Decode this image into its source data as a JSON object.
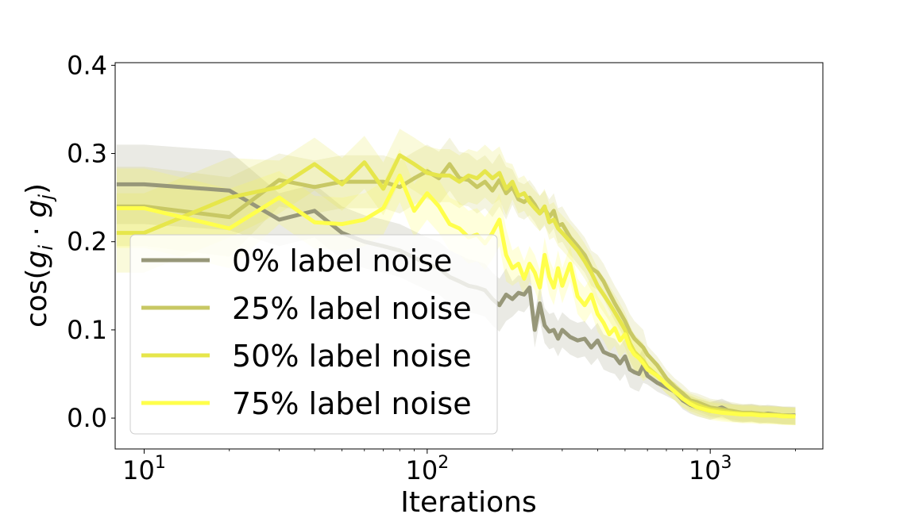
{
  "chart_data": {
    "type": "line",
    "xlabel": "Iterations",
    "ylabel_parts": [
      "cos(",
      "g",
      "i",
      " · ",
      "g",
      "j",
      ")"
    ],
    "x_scale": "log",
    "xlim": [
      7.9,
      2500
    ],
    "ylim": [
      -0.035,
      0.403
    ],
    "y_ticks": [
      {
        "value": 0.0,
        "label": "0.0"
      },
      {
        "value": 0.1,
        "label": "0.1"
      },
      {
        "value": 0.2,
        "label": "0.2"
      },
      {
        "value": 0.3,
        "label": "0.3"
      },
      {
        "value": 0.4,
        "label": "0.4"
      }
    ],
    "x_ticks": [
      {
        "value": 10,
        "base": "10",
        "exp": "1"
      },
      {
        "value": 100,
        "base": "10",
        "exp": "2"
      },
      {
        "value": 1000,
        "base": "10",
        "exp": "3"
      }
    ],
    "grid": false,
    "legend_position": "lower-left",
    "x": [
      8,
      10,
      20,
      30,
      40,
      50,
      60,
      70,
      80,
      90,
      100,
      110,
      120,
      130,
      140,
      150,
      160,
      170,
      180,
      190,
      200,
      210,
      220,
      230,
      240,
      250,
      260,
      270,
      280,
      290,
      300,
      320,
      340,
      360,
      380,
      400,
      420,
      440,
      460,
      480,
      500,
      520,
      540,
      560,
      580,
      600,
      650,
      700,
      750,
      800,
      850,
      900,
      950,
      1000,
      1100,
      1200,
      1300,
      1400,
      1500,
      1600,
      1700,
      1800,
      1900,
      2000
    ],
    "series": [
      {
        "name": "0% label noise",
        "color": "#979779",
        "values": [
          0.265,
          0.265,
          0.258,
          0.225,
          0.235,
          0.21,
          0.2,
          0.195,
          0.19,
          0.182,
          0.175,
          0.17,
          0.16,
          0.155,
          0.15,
          0.148,
          0.145,
          0.135,
          0.128,
          0.14,
          0.135,
          0.142,
          0.14,
          0.148,
          0.1,
          0.13,
          0.105,
          0.098,
          0.1,
          0.09,
          0.1,
          0.092,
          0.088,
          0.09,
          0.08,
          0.088,
          0.075,
          0.072,
          0.07,
          0.062,
          0.07,
          0.055,
          0.052,
          0.05,
          0.06,
          0.048,
          0.04,
          0.035,
          0.03,
          0.02,
          0.015,
          0.012,
          0.01,
          0.008,
          0.012,
          0.006,
          0.005,
          0.006,
          0.004,
          0.005,
          0.004,
          0.003,
          0.003,
          0.003
        ]
      },
      {
        "name": "25% label noise",
        "color": "#c8c864",
        "values": [
          0.24,
          0.24,
          0.228,
          0.27,
          0.262,
          0.268,
          0.268,
          0.268,
          0.262,
          0.272,
          0.28,
          0.272,
          0.288,
          0.272,
          0.27,
          0.262,
          0.268,
          0.258,
          0.27,
          0.255,
          0.262,
          0.248,
          0.245,
          0.25,
          0.242,
          0.232,
          0.238,
          0.228,
          0.235,
          0.218,
          0.22,
          0.205,
          0.195,
          0.185,
          0.17,
          0.165,
          0.155,
          0.142,
          0.13,
          0.12,
          0.11,
          0.098,
          0.09,
          0.085,
          0.08,
          0.072,
          0.06,
          0.045,
          0.035,
          0.028,
          0.02,
          0.018,
          0.015,
          0.012,
          0.01,
          0.008,
          0.006,
          0.006,
          0.005,
          0.004,
          0.004,
          0.003,
          0.003,
          0.002
        ]
      },
      {
        "name": "50% label noise",
        "color": "#e6e64b",
        "values": [
          0.21,
          0.21,
          0.25,
          0.262,
          0.288,
          0.265,
          0.29,
          0.26,
          0.298,
          0.288,
          0.278,
          0.275,
          0.275,
          0.268,
          0.275,
          0.272,
          0.28,
          0.272,
          0.278,
          0.26,
          0.268,
          0.252,
          0.255,
          0.245,
          0.238,
          0.232,
          0.24,
          0.222,
          0.225,
          0.215,
          0.21,
          0.2,
          0.19,
          0.178,
          0.165,
          0.15,
          0.14,
          0.13,
          0.12,
          0.11,
          0.1,
          0.085,
          0.075,
          0.07,
          0.065,
          0.058,
          0.048,
          0.038,
          0.03,
          0.022,
          0.018,
          0.015,
          0.012,
          0.01,
          0.008,
          0.006,
          0.005,
          0.005,
          0.004,
          0.004,
          0.003,
          0.003,
          0.002,
          0.002
        ]
      },
      {
        "name": "75% label noise",
        "color": "#ffff4b",
        "values": [
          0.238,
          0.238,
          0.215,
          0.25,
          0.222,
          0.22,
          0.225,
          0.238,
          0.275,
          0.235,
          0.255,
          0.24,
          0.22,
          0.215,
          0.205,
          0.208,
          0.198,
          0.21,
          0.225,
          0.185,
          0.17,
          0.175,
          0.158,
          0.175,
          0.165,
          0.148,
          0.185,
          0.16,
          0.148,
          0.17,
          0.15,
          0.175,
          0.138,
          0.128,
          0.14,
          0.118,
          0.108,
          0.095,
          0.102,
          0.088,
          0.095,
          0.08,
          0.072,
          0.068,
          0.062,
          0.055,
          0.048,
          0.038,
          0.03,
          0.022,
          0.016,
          0.012,
          0.01,
          0.008,
          0.006,
          0.005,
          0.004,
          0.004,
          0.003,
          0.003,
          0.003,
          0.002,
          0.002,
          0.002
        ]
      }
    ]
  }
}
